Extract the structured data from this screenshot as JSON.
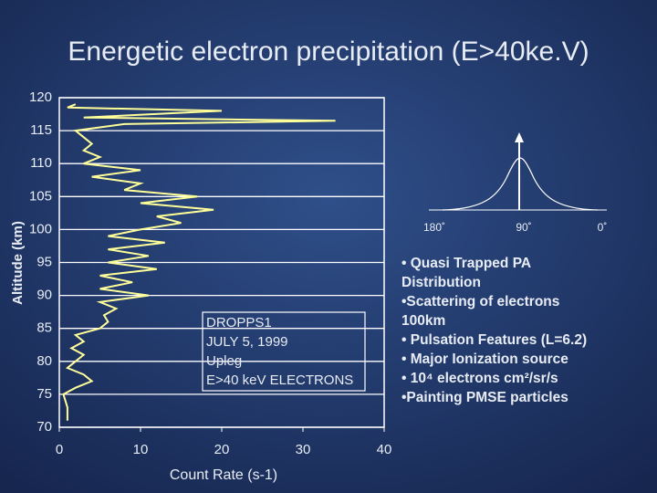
{
  "chart_data": {
    "type": "line",
    "title": "Energetic electron precipitation (E>40ke.V)",
    "xlabel": "Count Rate (s-1)",
    "ylabel": "Altitude (km)",
    "xlim": [
      0,
      40
    ],
    "ylim": [
      70,
      120
    ],
    "xticks": [
      0,
      10,
      20,
      30,
      40
    ],
    "yticks": [
      70,
      75,
      80,
      85,
      90,
      95,
      100,
      105,
      110,
      115,
      120
    ],
    "grid": true,
    "annotation": [
      "DROPPS1",
      "JULY 5, 1999",
      "Upleg",
      "E>40 keV ELECTRONS"
    ],
    "series": [
      {
        "color": "#ffff99",
        "x": [
          1,
          1,
          0.5,
          2,
          4,
          3,
          1,
          2,
          3,
          1.5,
          3,
          2,
          5,
          6,
          5.5,
          7,
          5,
          11,
          5,
          9,
          5,
          12,
          6,
          11,
          6,
          13,
          6,
          10,
          15,
          12,
          19,
          10,
          17,
          8,
          10,
          4,
          10,
          3,
          5,
          3,
          4,
          3,
          2,
          8,
          34,
          3,
          20,
          1,
          2
        ],
        "values": [
          71,
          73,
          75,
          76,
          77,
          78,
          79,
          80,
          81,
          82,
          83,
          84,
          85,
          86,
          87,
          88,
          89,
          90,
          91,
          92,
          93,
          94,
          95,
          96,
          97,
          98,
          99,
          100,
          101,
          102,
          103,
          104,
          105,
          106,
          107,
          108,
          109,
          110,
          111,
          112,
          113,
          114,
          115,
          116,
          116.5,
          117,
          118,
          118.5,
          119
        ]
      }
    ]
  },
  "diagram": {
    "labels": [
      "180˚",
      "90˚",
      "0˚"
    ]
  },
  "bullets": [
    [
      "• Quasi Trapped PA",
      "Distribution"
    ],
    [
      "•Scattering of electrons",
      "100km"
    ],
    [
      "• Pulsation Features (L=6.2)"
    ],
    [
      "• Major Ionization source"
    ],
    [
      "• 10⁴ electrons cm²/sr/s"
    ],
    [
      "•Painting PMSE particles"
    ]
  ]
}
